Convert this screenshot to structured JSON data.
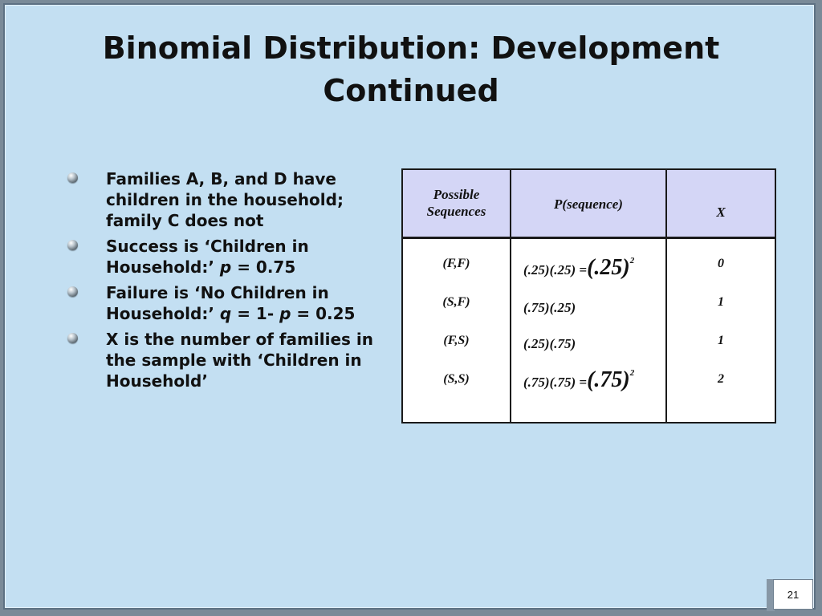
{
  "title": {
    "line1": "Binomial Distribution: Development",
    "line2": "Continued"
  },
  "bullets": [
    {
      "lines": [
        "Families A, B, and D have",
        "children in the household;",
        "family C does not"
      ]
    },
    {
      "line1": "Success is ‘Children in",
      "line2_prefix": "Household:’  ",
      "var": "p",
      "line2_suffix": " = 0.75"
    },
    {
      "line1": "Failure is ‘No Children in",
      "line2_prefix": "Household:’  ",
      "var": "q",
      "line2_mid": " = 1- ",
      "var2": "p",
      "line2_suffix": " = 0.25"
    },
    {
      "lines": [
        "X is the number of families in",
        "the sample with ‘Children in",
        "Household’"
      ]
    }
  ],
  "table": {
    "headers": {
      "col1_line1": "Possible",
      "col1_line2": "Sequences",
      "col2": "P(sequence)",
      "col3": "X"
    },
    "rows": [
      {
        "seq": "(F,F)",
        "expr": "(.25)(.25) =",
        "big": "(.25)",
        "exp": "2",
        "x": "0"
      },
      {
        "seq": "(S,F)",
        "expr": "(.75)(.25)",
        "big": "",
        "exp": "",
        "x": "1"
      },
      {
        "seq": "(F,S)",
        "expr": "(.25)(.75)",
        "big": "",
        "exp": "",
        "x": "1"
      },
      {
        "seq": "(S,S)",
        "expr": "(.75)(.75) =",
        "big": "(.75)",
        "exp": "2",
        "x": "2"
      }
    ]
  },
  "page_number": "21"
}
